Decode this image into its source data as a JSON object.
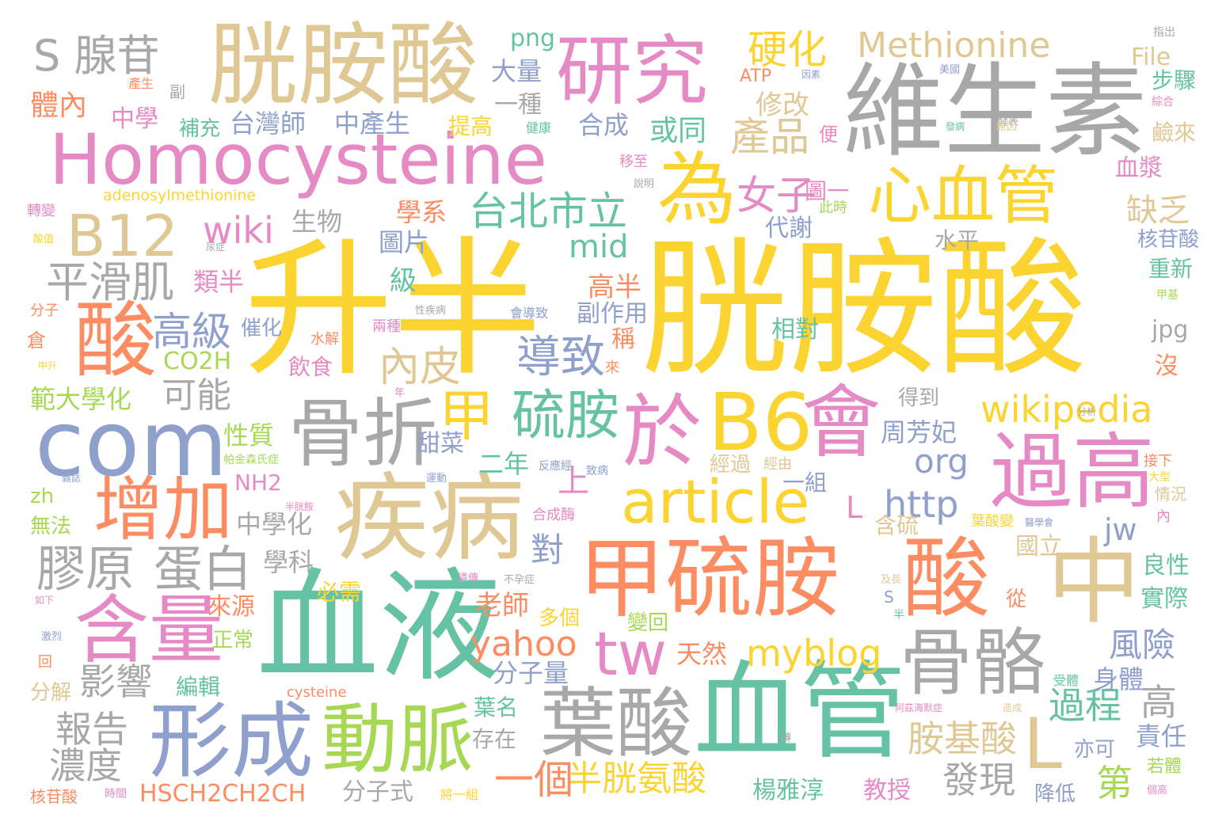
{
  "palette": {
    "yellow": "#fcd432",
    "tan": "#e0c894",
    "gray": "#a8a8a8",
    "pink": "#e58ac5",
    "blue": "#8ea0cb",
    "green": "#66c2a5",
    "orange": "#fc8d62",
    "lime": "#a6d854"
  },
  "words": [
    {
      "text": "升半",
      "color": "yellow"
    },
    {
      "text": "胱胺酸",
      "color": "yellow"
    },
    {
      "text": "胱胺酸",
      "color": "tan"
    },
    {
      "text": "維生素",
      "color": "gray"
    },
    {
      "text": "Homocysteine",
      "color": "pink"
    },
    {
      "text": "研究",
      "color": "pink"
    },
    {
      "text": "S 腺苷",
      "color": "gray"
    },
    {
      "text": "Methionine",
      "color": "tan"
    },
    {
      "text": "硬化",
      "color": "yellow"
    },
    {
      "text": "B12",
      "color": "tan"
    },
    {
      "text": "為",
      "color": "yellow"
    },
    {
      "text": "心血管",
      "color": "yellow"
    },
    {
      "text": "血液",
      "color": "green"
    },
    {
      "text": "甲硫胺",
      "color": "orange"
    },
    {
      "text": "酸",
      "color": "orange"
    },
    {
      "text": "中",
      "color": "tan"
    },
    {
      "text": "血管",
      "color": "green"
    },
    {
      "text": "骨骼",
      "color": "gray"
    },
    {
      "text": "疾病",
      "color": "tan"
    },
    {
      "text": "骨折",
      "color": "gray"
    },
    {
      "text": "於",
      "color": "pink"
    },
    {
      "text": "B6",
      "color": "yellow"
    },
    {
      "text": "會",
      "color": "pink"
    },
    {
      "text": "過高",
      "color": "pink"
    },
    {
      "text": "com",
      "color": "blue"
    },
    {
      "text": "article",
      "color": "yellow"
    },
    {
      "text": "增加",
      "color": "orange"
    },
    {
      "text": "含量",
      "color": "pink"
    },
    {
      "text": "形成",
      "color": "blue"
    },
    {
      "text": "動脈",
      "color": "lime"
    },
    {
      "text": "葉酸",
      "color": "gray"
    },
    {
      "text": "tw",
      "color": "pink"
    },
    {
      "text": "酸",
      "color": "orange"
    },
    {
      "text": "甲",
      "color": "yellow"
    },
    {
      "text": "硫胺",
      "color": "green"
    },
    {
      "text": "wikipedia",
      "color": "yellow"
    },
    {
      "text": "膠原",
      "color": "gray"
    },
    {
      "text": "蛋白",
      "color": "gray"
    },
    {
      "text": "平滑肌",
      "color": "gray"
    },
    {
      "text": "產品",
      "color": "tan"
    },
    {
      "text": "女子",
      "color": "pink"
    },
    {
      "text": "台北市立",
      "color": "green"
    },
    {
      "text": "wiki",
      "color": "pink"
    },
    {
      "text": "高級",
      "color": "blue"
    },
    {
      "text": "內皮",
      "color": "tan"
    },
    {
      "text": "導致",
      "color": "blue"
    },
    {
      "text": "mid",
      "color": "green"
    },
    {
      "text": "http",
      "color": "blue"
    },
    {
      "text": "myblog",
      "color": "yellow"
    },
    {
      "text": "yahoo",
      "color": "orange"
    },
    {
      "text": "半胱氨酸",
      "color": "yellow"
    },
    {
      "text": "胺基酸",
      "color": "tan"
    },
    {
      "text": "一個",
      "color": "orange"
    },
    {
      "text": "org",
      "color": "blue"
    },
    {
      "text": "jw",
      "color": "blue"
    },
    {
      "text": "可能",
      "color": "gray"
    },
    {
      "text": "影響",
      "color": "gray"
    },
    {
      "text": "報告",
      "color": "gray"
    },
    {
      "text": "濃度",
      "color": "gray"
    },
    {
      "text": "過程",
      "color": "green"
    },
    {
      "text": "發現",
      "color": "gray"
    },
    {
      "text": "風險",
      "color": "blue"
    },
    {
      "text": "缺乏",
      "color": "tan"
    },
    {
      "text": "體內",
      "color": "orange"
    },
    {
      "text": "中學",
      "color": "pink"
    },
    {
      "text": "補充",
      "color": "green"
    },
    {
      "text": "台灣師",
      "color": "blue"
    },
    {
      "text": "中產生",
      "color": "blue"
    },
    {
      "text": "提高",
      "color": "yellow"
    },
    {
      "text": "合成",
      "color": "blue"
    },
    {
      "text": "修改",
      "color": "tan"
    },
    {
      "text": "或同",
      "color": "green"
    },
    {
      "text": "大量",
      "color": "blue"
    },
    {
      "text": "一種",
      "color": "gray"
    },
    {
      "text": "png",
      "color": "green"
    },
    {
      "text": "File",
      "color": "tan"
    },
    {
      "text": "步驟",
      "color": "green"
    },
    {
      "text": "鹼來",
      "color": "tan"
    },
    {
      "text": "ATP",
      "color": "orange"
    },
    {
      "text": "便",
      "color": "pink"
    },
    {
      "text": "圖一",
      "color": "pink"
    },
    {
      "text": "血漿",
      "color": "pink"
    },
    {
      "text": "adenosylmethionine",
      "color": "yellow"
    },
    {
      "text": "類半",
      "color": "pink"
    },
    {
      "text": "生物",
      "color": "gray"
    },
    {
      "text": "學系",
      "color": "orange"
    },
    {
      "text": "圖片",
      "color": "blue"
    },
    {
      "text": "代謝",
      "color": "blue"
    },
    {
      "text": "水平",
      "color": "gray"
    },
    {
      "text": "核苷酸",
      "color": "blue"
    },
    {
      "text": "重新",
      "color": "green"
    },
    {
      "text": "級",
      "color": "green"
    },
    {
      "text": "高半",
      "color": "orange"
    },
    {
      "text": "副作用",
      "color": "blue"
    },
    {
      "text": "稱",
      "color": "orange"
    },
    {
      "text": "相對",
      "color": "green"
    },
    {
      "text": "jpg",
      "color": "gray"
    },
    {
      "text": "沒",
      "color": "orange"
    },
    {
      "text": "CO2H",
      "color": "lime"
    },
    {
      "text": "催化",
      "color": "blue"
    },
    {
      "text": "飲食",
      "color": "pink"
    },
    {
      "text": "範大學化",
      "color": "lime"
    },
    {
      "text": "性質",
      "color": "lime"
    },
    {
      "text": "甜菜",
      "color": "blue"
    },
    {
      "text": "二年",
      "color": "green"
    },
    {
      "text": "周芳妃",
      "color": "blue"
    },
    {
      "text": "得到",
      "color": "gray"
    },
    {
      "text": "經過",
      "color": "tan"
    },
    {
      "text": "一組",
      "color": "blue"
    },
    {
      "text": "上",
      "color": "pink"
    },
    {
      "text": "NH2",
      "color": "pink"
    },
    {
      "text": "中學化",
      "color": "gray"
    },
    {
      "text": "學科",
      "color": "gray"
    },
    {
      "text": "無法",
      "color": "lime"
    },
    {
      "text": "zh",
      "color": "lime"
    },
    {
      "text": "必需",
      "color": "yellow"
    },
    {
      "text": "對",
      "color": "blue"
    },
    {
      "text": "老師",
      "color": "orange"
    },
    {
      "text": "含硫",
      "color": "tan"
    },
    {
      "text": "國立",
      "color": "tan"
    },
    {
      "text": "L",
      "color": "pink"
    },
    {
      "text": "L",
      "color": "tan"
    },
    {
      "text": "良性",
      "color": "green"
    },
    {
      "text": "實際",
      "color": "green"
    },
    {
      "text": "來源",
      "color": "orange"
    },
    {
      "text": "正常",
      "color": "lime"
    },
    {
      "text": "多個",
      "color": "yellow"
    },
    {
      "text": "變回",
      "color": "lime"
    },
    {
      "text": "從",
      "color": "orange"
    },
    {
      "text": "天然",
      "color": "orange"
    },
    {
      "text": "分子量",
      "color": "blue"
    },
    {
      "text": "身體",
      "color": "blue"
    },
    {
      "text": "編輯",
      "color": "green"
    },
    {
      "text": "分解",
      "color": "tan"
    },
    {
      "text": "葉名",
      "color": "green"
    },
    {
      "text": "高",
      "color": "gray"
    },
    {
      "text": "存在",
      "color": "gray"
    },
    {
      "text": "責任",
      "color": "blue"
    },
    {
      "text": "亦可",
      "color": "blue"
    },
    {
      "text": "第",
      "color": "lime"
    },
    {
      "text": "HSCH2CH2CH",
      "color": "orange"
    },
    {
      "text": "分子式",
      "color": "gray"
    },
    {
      "text": "楊雅淳",
      "color": "green"
    },
    {
      "text": "教授",
      "color": "pink"
    },
    {
      "text": "降低",
      "color": "blue"
    },
    {
      "text": "若體",
      "color": "lime"
    },
    {
      "text": "cysteine",
      "color": "orange"
    },
    {
      "text": "指出",
      "color": "gray"
    },
    {
      "text": "美國",
      "color": "blue"
    },
    {
      "text": "因素",
      "color": "blue"
    },
    {
      "text": "產生",
      "color": "orange"
    },
    {
      "text": "副",
      "color": "gray"
    },
    {
      "text": "健康",
      "color": "green"
    },
    {
      "text": "發表",
      "color": "gray"
    },
    {
      "text": "發病",
      "color": "green"
    },
    {
      "text": "原因",
      "color": "tan"
    },
    {
      "text": "綜合",
      "color": "pink"
    },
    {
      "text": "移至",
      "color": "pink"
    },
    {
      "text": "說明",
      "color": "gray"
    },
    {
      "text": "此時",
      "color": "lime"
    },
    {
      "text": "轉變",
      "color": "pink"
    },
    {
      "text": "酸值",
      "color": "yellow"
    },
    {
      "text": "尿症",
      "color": "gray"
    },
    {
      "text": "甲基",
      "color": "lime"
    },
    {
      "text": "分子",
      "color": "orange"
    },
    {
      "text": "倉",
      "color": "orange"
    },
    {
      "text": "水解",
      "color": "orange"
    },
    {
      "text": "中升",
      "color": "yellow"
    },
    {
      "text": "兩種",
      "color": "pink"
    },
    {
      "text": "性疾病",
      "color": "gray"
    },
    {
      "text": "會導致",
      "color": "blue"
    },
    {
      "text": "來",
      "color": "orange"
    },
    {
      "text": "年",
      "color": "pink"
    },
    {
      "text": "帕金森氏症",
      "color": "lime"
    },
    {
      "text": "反應經",
      "color": "blue"
    },
    {
      "text": "經由",
      "color": "tan"
    },
    {
      "text": "分析",
      "color": "gray"
    },
    {
      "text": "接下",
      "color": "orange"
    },
    {
      "text": "大型",
      "color": "yellow"
    },
    {
      "text": "雜誌",
      "color": "blue"
    },
    {
      "text": "運動",
      "color": "blue"
    },
    {
      "text": "半胱胺",
      "color": "pink"
    },
    {
      "text": "致病",
      "color": "blue"
    },
    {
      "text": "合成酶",
      "color": "pink"
    },
    {
      "text": "葉酸變",
      "color": "yellow"
    },
    {
      "text": "醫學會",
      "color": "blue"
    },
    {
      "text": "情況",
      "color": "tan"
    },
    {
      "text": "內",
      "color": "pink"
    },
    {
      "text": "遺傳",
      "color": "pink"
    },
    {
      "text": "不孕症",
      "color": "gray"
    },
    {
      "text": "如下",
      "color": "pink"
    },
    {
      "text": "及長",
      "color": "tan"
    },
    {
      "text": "S",
      "color": "blue"
    },
    {
      "text": "半",
      "color": "green"
    },
    {
      "text": "激烈",
      "color": "blue"
    },
    {
      "text": "回",
      "color": "orange"
    },
    {
      "text": "受體",
      "color": "green"
    },
    {
      "text": "阿茲海默症",
      "color": "pink"
    },
    {
      "text": "造成",
      "color": "tan"
    },
    {
      "text": "轉",
      "color": "gray"
    },
    {
      "text": "核苷酸",
      "color": "orange"
    },
    {
      "text": "時間",
      "color": "pink"
    },
    {
      "text": "將一組",
      "color": "yellow"
    },
    {
      "text": "個高",
      "color": "pink"
    }
  ]
}
